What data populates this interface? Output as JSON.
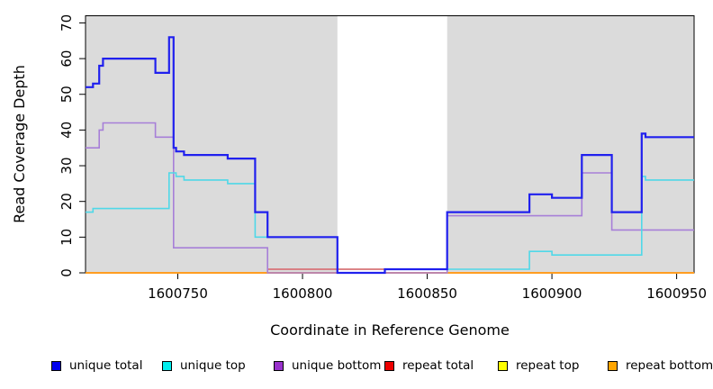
{
  "chart_data": {
    "type": "line",
    "subtype": "step",
    "xlabel": "Coordinate in Reference Genome",
    "ylabel": "Read Coverage Depth",
    "xlim": [
      1600713,
      1600957
    ],
    "ylim": [
      0,
      72
    ],
    "x_ticks": [
      1600750,
      1600800,
      1600850,
      1600900,
      1600950
    ],
    "x_tick_labels": [
      "1600750",
      "1600800",
      "1600850",
      "1600900",
      "1600950"
    ],
    "y_ticks": [
      0,
      10,
      20,
      30,
      40,
      50,
      60,
      70
    ],
    "y_tick_labels": [
      "0",
      "10",
      "20",
      "30",
      "40",
      "50",
      "60",
      "70"
    ],
    "grid": false,
    "legend_position": "bottom",
    "shaded_color": "#dbdbdb",
    "shaded_x_ranges": [
      [
        1600713,
        1600814
      ],
      [
        1600858,
        1600957
      ]
    ],
    "unshaded_gap_x_range": [
      1600814,
      1600858
    ],
    "series": [
      {
        "name": "unique total",
        "line_color": "#2020ee",
        "swatch_color": "#0000ee",
        "line_width": 2.2,
        "steps": [
          [
            1600713,
            52
          ],
          [
            1600716,
            53
          ],
          [
            1600718.5,
            58
          ],
          [
            1600720,
            60
          ],
          [
            1600741,
            56
          ],
          [
            1600746.5,
            66
          ],
          [
            1600748.3,
            35
          ],
          [
            1600749.3,
            34
          ],
          [
            1600752.5,
            33
          ],
          [
            1600770,
            32
          ],
          [
            1600781,
            17
          ],
          [
            1600786,
            10
          ],
          [
            1600814,
            0
          ],
          [
            1600833,
            1
          ],
          [
            1600858,
            17
          ],
          [
            1600891,
            22
          ],
          [
            1600900,
            21
          ],
          [
            1600912,
            33
          ],
          [
            1600924,
            17
          ],
          [
            1600936,
            39
          ],
          [
            1600937.5,
            38
          ]
        ]
      },
      {
        "name": "unique top",
        "line_color": "#4fd8e8",
        "swatch_color": "#00eeee",
        "line_width": 1.6,
        "steps": [
          [
            1600713,
            17
          ],
          [
            1600716,
            18
          ],
          [
            1600746.5,
            28
          ],
          [
            1600749.3,
            27
          ],
          [
            1600752.5,
            26
          ],
          [
            1600770,
            25
          ],
          [
            1600781,
            10
          ],
          [
            1600814,
            0
          ],
          [
            1600833,
            1
          ],
          [
            1600891,
            6
          ],
          [
            1600900,
            5
          ],
          [
            1600936,
            27
          ],
          [
            1600937.5,
            26
          ]
        ]
      },
      {
        "name": "unique bottom",
        "line_color": "#a77fd8",
        "swatch_color": "#9932cc",
        "line_width": 1.6,
        "steps": [
          [
            1600713,
            35
          ],
          [
            1600718.5,
            40
          ],
          [
            1600720,
            42
          ],
          [
            1600741,
            38
          ],
          [
            1600748.3,
            7
          ],
          [
            1600786,
            0
          ],
          [
            1600858,
            16
          ],
          [
            1600912,
            28
          ],
          [
            1600924,
            12
          ]
        ]
      },
      {
        "name": "repeat total",
        "line_color": "#d4628c",
        "swatch_color": "#ee0000",
        "line_width": 1.4,
        "steps": [
          [
            1600713,
            0
          ],
          [
            1600786,
            1
          ],
          [
            1600833,
            0
          ]
        ]
      },
      {
        "name": "repeat top",
        "line_color": "#f0e000",
        "swatch_color": "#ffff00",
        "line_width": 1.4,
        "steps": [
          [
            1600713,
            0
          ],
          [
            1600786,
            1
          ],
          [
            1600833,
            0
          ]
        ]
      },
      {
        "name": "repeat bottom",
        "line_color": "#ff9d21",
        "swatch_color": "#ffa500",
        "line_width": 1.9,
        "steps": [
          [
            1600713,
            0
          ]
        ]
      }
    ],
    "draw_order": [
      4,
      3,
      5,
      2,
      1,
      0
    ]
  }
}
